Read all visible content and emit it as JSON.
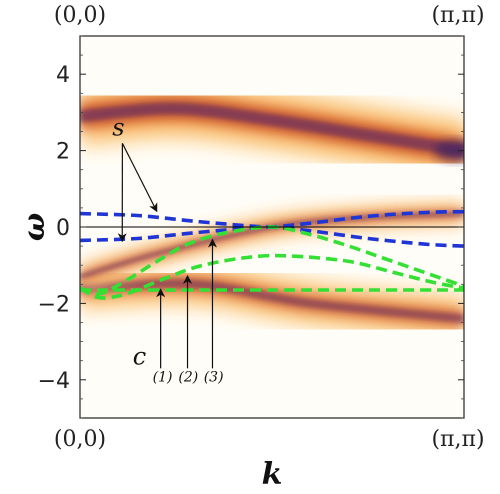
{
  "chart_data": {
    "type": "heatmap",
    "title": "",
    "xlabel": "k",
    "ylabel": "ω",
    "xlim": [
      0,
      1
    ],
    "ylim": [
      -5,
      5
    ],
    "x_tick_labels": {
      "left": "(0,0)",
      "right": "(π,π)"
    },
    "top_tick_labels": {
      "left": "(0,0)",
      "right": "(π,π)"
    },
    "y_ticks": [
      4,
      2,
      0,
      -2,
      -4
    ],
    "y_tick_labels": [
      "4",
      "2",
      "0",
      "−2",
      "−4"
    ],
    "colormap": [
      "#fffdf5",
      "#fde2b0",
      "#f6a14a",
      "#c5502c",
      "#6b2e5f",
      "#3c2060"
    ],
    "spectral_bands": [
      {
        "name": "upper band",
        "center": [
          [
            0,
            2.9
          ],
          [
            0.25,
            3.1
          ],
          [
            0.5,
            2.8
          ],
          [
            0.75,
            2.4
          ],
          [
            1,
            2.0
          ]
        ],
        "width": 0.7,
        "intensity": 0.95
      },
      {
        "name": "lower band",
        "center": [
          [
            0,
            -1.6
          ],
          [
            0.3,
            -1.5
          ],
          [
            0.6,
            -2.0
          ],
          [
            1,
            -2.4
          ]
        ],
        "width": 0.5,
        "intensity": 0.75
      },
      {
        "name": "quasiparticle",
        "center": [
          [
            0,
            -1.3
          ],
          [
            0.2,
            -0.7
          ],
          [
            0.5,
            0.0
          ],
          [
            0.75,
            0.25
          ],
          [
            1,
            0.35
          ]
        ],
        "width": 0.22,
        "intensity": 0.9
      }
    ],
    "series": [
      {
        "name": "s",
        "color": "#1f35d6",
        "points": [
          [
            0,
            0.35
          ],
          [
            0.15,
            0.3
          ],
          [
            0.3,
            0.15
          ],
          [
            0.45,
            0.02
          ],
          [
            0.5,
            0.0
          ],
          [
            0.6,
            -0.1
          ],
          [
            0.75,
            -0.3
          ],
          [
            0.9,
            -0.45
          ],
          [
            1,
            -0.5
          ]
        ]
      },
      {
        "name": "s",
        "color": "#1f35d6",
        "points": [
          [
            0,
            -0.35
          ],
          [
            0.15,
            -0.3
          ],
          [
            0.3,
            -0.15
          ],
          [
            0.45,
            -0.02
          ],
          [
            0.5,
            0.0
          ],
          [
            0.6,
            0.1
          ],
          [
            0.75,
            0.28
          ],
          [
            0.9,
            0.38
          ],
          [
            1,
            0.4
          ]
        ]
      },
      {
        "name": "c",
        "color": "#33e033",
        "points": [
          [
            0,
            -1.6
          ],
          [
            0.05,
            -1.75
          ],
          [
            0.12,
            -1.4
          ],
          [
            0.2,
            -0.9
          ],
          [
            0.28,
            -0.45
          ],
          [
            0.38,
            -0.15
          ],
          [
            0.5,
            0.0
          ],
          [
            0.6,
            -0.2
          ],
          [
            0.7,
            -0.5
          ],
          [
            0.8,
            -0.85
          ],
          [
            0.9,
            -1.2
          ],
          [
            1,
            -1.55
          ]
        ]
      },
      {
        "name": "c",
        "color": "#33e033",
        "points": [
          [
            0,
            -1.6
          ],
          [
            0.05,
            -1.85
          ],
          [
            0.12,
            -1.75
          ],
          [
            0.22,
            -1.35
          ],
          [
            0.32,
            -1.0
          ],
          [
            0.45,
            -0.78
          ],
          [
            0.55,
            -0.76
          ],
          [
            0.7,
            -0.9
          ],
          [
            0.82,
            -1.2
          ],
          [
            0.92,
            -1.45
          ],
          [
            1,
            -1.6
          ]
        ]
      },
      {
        "name": "c",
        "color": "#33e033",
        "points": [
          [
            0,
            -1.65
          ],
          [
            0.25,
            -1.65
          ],
          [
            0.5,
            -1.65
          ],
          [
            0.75,
            -1.65
          ],
          [
            1,
            -1.65
          ]
        ]
      }
    ],
    "annotations": [
      {
        "label": "s",
        "text_at": [
          0.1,
          2.4
        ],
        "arrows_to": [
          [
            0.11,
            -0.45
          ],
          [
            0.2,
            0.33
          ]
        ]
      },
      {
        "label": "c",
        "text_at": [
          0.155,
          -3.6
        ],
        "arrows_to": []
      },
      {
        "label": "(1)",
        "text_at": [
          0.215,
          -4.05
        ],
        "arrow_from": [
          0.21,
          -3.7
        ],
        "arrow_to": [
          0.21,
          -1.55
        ]
      },
      {
        "label": "(2)",
        "text_at": [
          0.282,
          -4.05
        ],
        "arrow_from": [
          0.28,
          -3.7
        ],
        "arrow_to": [
          0.28,
          -1.2
        ]
      },
      {
        "label": "(3)",
        "text_at": [
          0.348,
          -4.05
        ],
        "arrow_from": [
          0.345,
          -3.7
        ],
        "arrow_to": [
          0.345,
          -0.25
        ]
      }
    ],
    "grid": false,
    "legend": "none"
  }
}
